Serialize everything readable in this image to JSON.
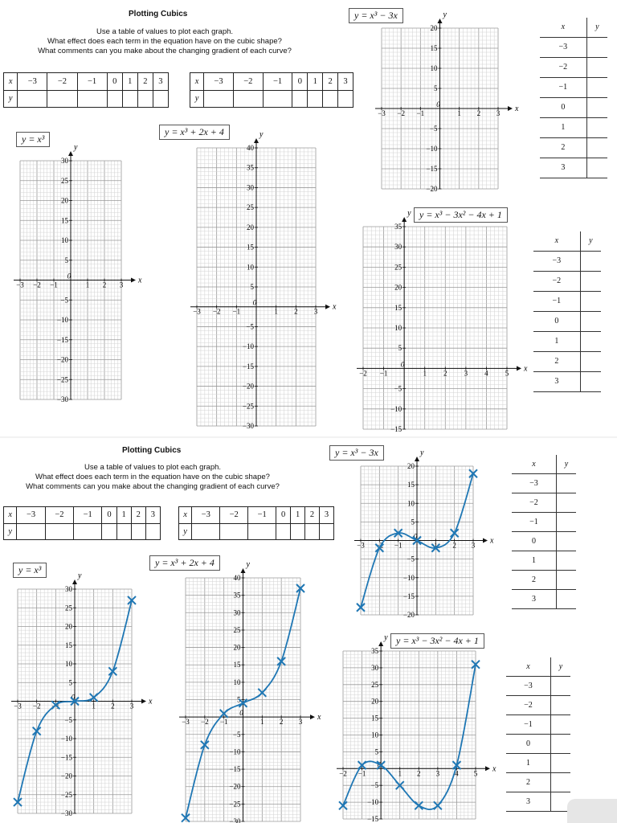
{
  "worksheet": {
    "title": "Plotting Cubics",
    "instructions": [
      "Use a table of values to plot each graph.",
      "What effect does each term in the equation have on the cubic shape?",
      "What comments can you make about the changing gradient of each curve?"
    ],
    "x_values": [
      "−3",
      "−2",
      "−1",
      "0",
      "1",
      "2",
      "3"
    ],
    "x_values_5": [
      "−3",
      "−2",
      "−1",
      "0",
      "1",
      "2",
      "3"
    ],
    "row_x": "x",
    "row_y": "y",
    "equations": {
      "g1": "y = x³",
      "g2": "y = x³ + 2x + 4",
      "g3": "y = x³ − 3x",
      "g4": "y = x³ − 3x² − 4x + 1"
    }
  },
  "chart_data": [
    {
      "type": "line",
      "title": "y = x³",
      "xlabel": "x",
      "ylabel": "y",
      "xlim": [
        -3,
        3
      ],
      "ylim": [
        -30,
        30
      ],
      "x": [
        -3,
        -2,
        -1,
        0,
        1,
        2,
        3
      ],
      "series": [
        {
          "values": [
            -27,
            -8,
            -1,
            0,
            1,
            8,
            27
          ]
        }
      ],
      "marker": "x",
      "color": "#1f77b4",
      "grid": true
    },
    {
      "type": "line",
      "title": "y = x³ + 2x + 4",
      "xlabel": "x",
      "ylabel": "y",
      "xlim": [
        -3,
        3
      ],
      "ylim": [
        -30,
        40
      ],
      "x": [
        -3,
        -2,
        -1,
        0,
        1,
        2,
        3
      ],
      "series": [
        {
          "values": [
            -29,
            -8,
            1,
            4,
            7,
            16,
            37
          ]
        }
      ],
      "marker": "x",
      "color": "#1f77b4",
      "grid": true
    },
    {
      "type": "line",
      "title": "y = x³ − 3x",
      "xlabel": "x",
      "ylabel": "y",
      "xlim": [
        -3,
        3
      ],
      "ylim": [
        -20,
        20
      ],
      "x": [
        -3,
        -2,
        -1,
        0,
        1,
        2,
        3
      ],
      "series": [
        {
          "values": [
            -18,
            -2,
            2,
            0,
            -2,
            2,
            18
          ]
        }
      ],
      "marker": "x",
      "color": "#1f77b4",
      "grid": true
    },
    {
      "type": "line",
      "title": "y = x³ − 3x² − 4x + 1",
      "xlabel": "x",
      "ylabel": "y",
      "xlim": [
        -2,
        5
      ],
      "ylim": [
        -15,
        35
      ],
      "x": [
        -2,
        -1,
        0,
        1,
        2,
        3,
        4,
        5
      ],
      "series": [
        {
          "values": [
            -11,
            1,
            1,
            -5,
            -11,
            -11,
            1,
            31
          ]
        }
      ],
      "marker": "x",
      "color": "#1f77b4",
      "grid": true
    }
  ]
}
